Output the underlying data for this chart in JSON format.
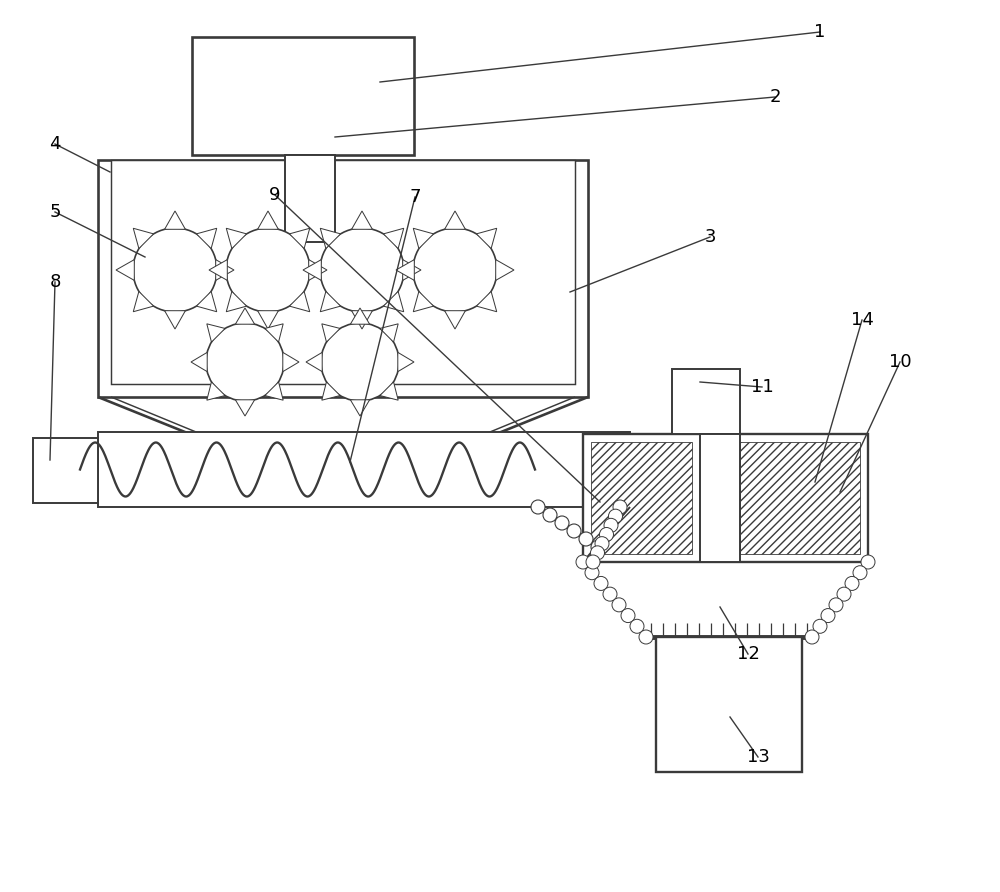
{
  "bg_color": "#ffffff",
  "line_color": "#3a3a3a",
  "lw": 1.4,
  "fig_width": 10.0,
  "fig_height": 8.92,
  "label_fontsize": 13
}
